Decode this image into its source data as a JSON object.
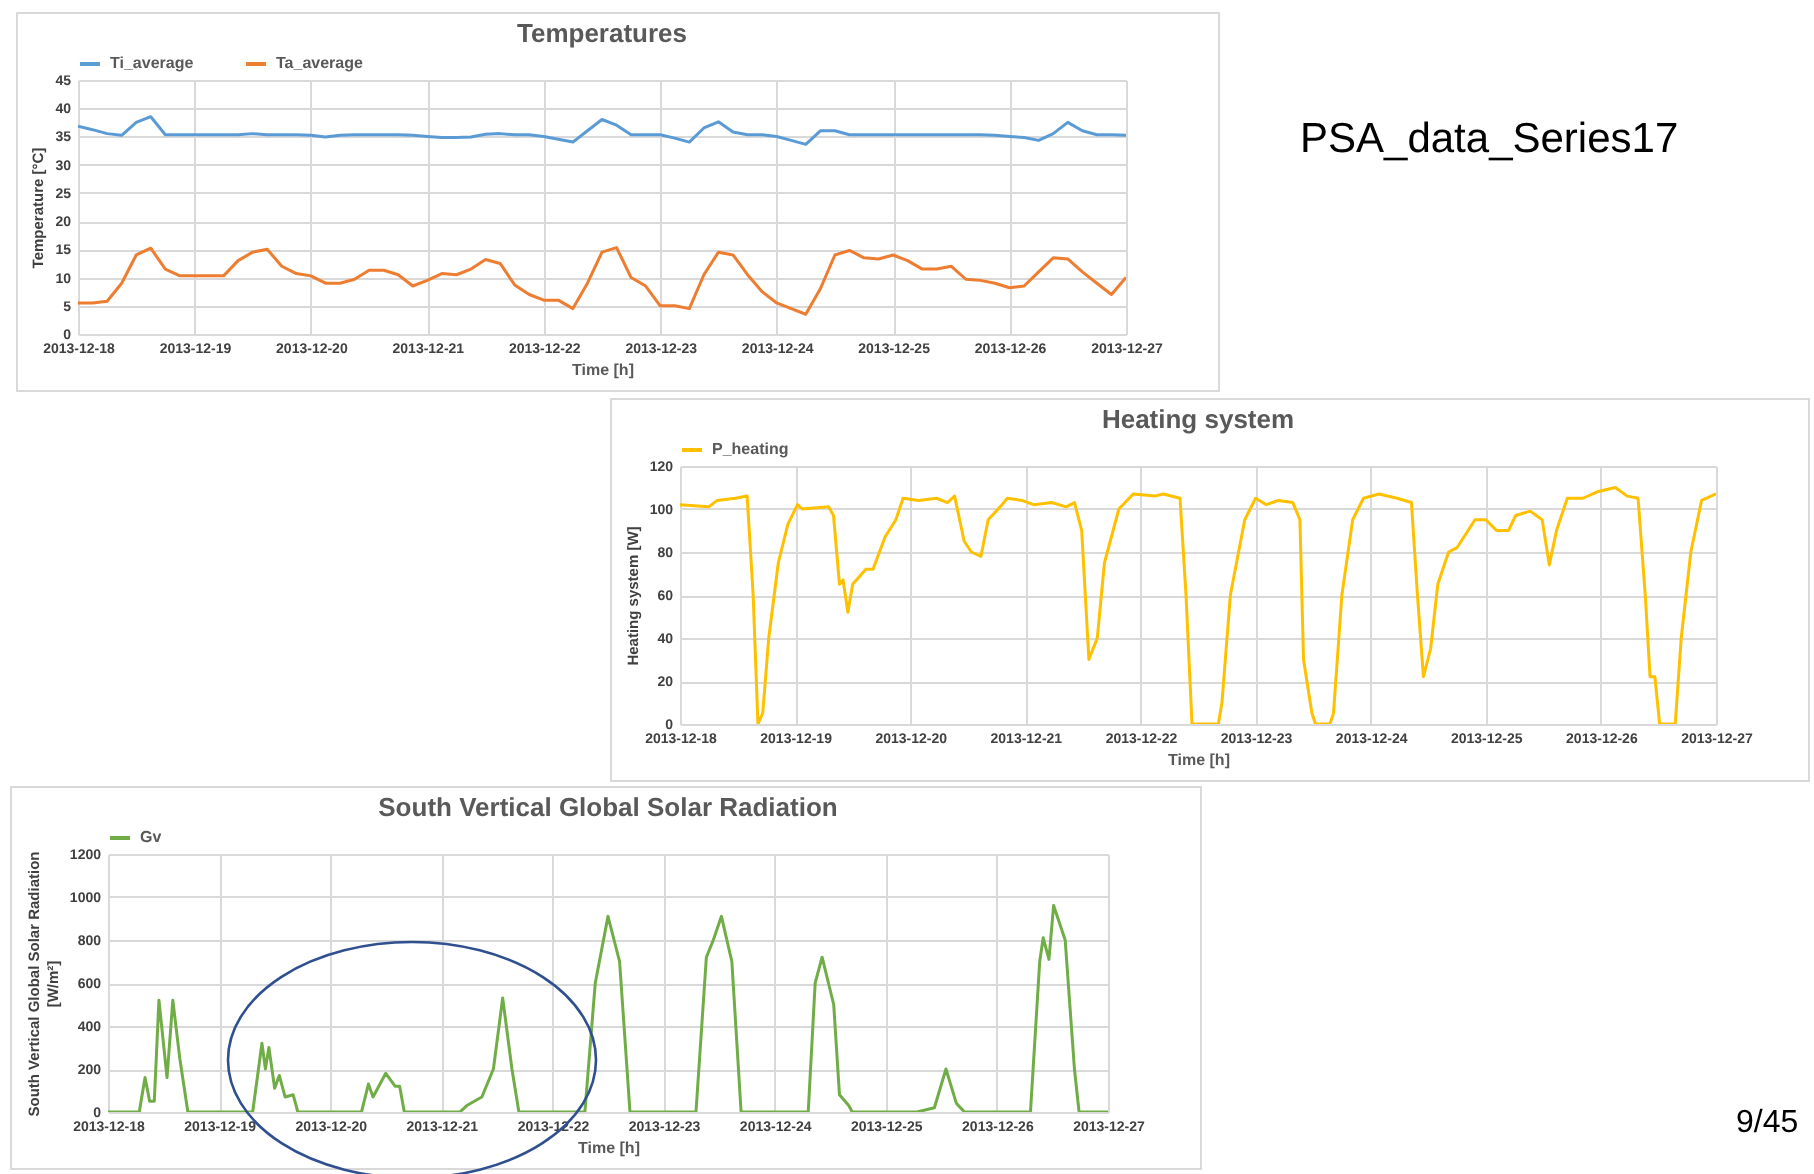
{
  "chart_data": [
    {
      "type": "line",
      "title": "Temperatures",
      "xlabel": "Time [h]",
      "ylabel": "Temperature [°C]",
      "legend": "top",
      "grid": true,
      "annotations": [
        "PSA_data_Series17"
      ],
      "xlim": [
        "2013-12-18",
        "2013-12-27"
      ],
      "xticks": [
        "2013-12-18",
        "2013-12-19",
        "2013-12-20",
        "2013-12-21",
        "2013-12-22",
        "2013-12-23",
        "2013-12-24",
        "2013-12-25",
        "2013-12-26",
        "2013-12-27"
      ],
      "ylim": [
        0,
        45
      ],
      "yticks": [
        0,
        5,
        10,
        15,
        20,
        25,
        30,
        35,
        40,
        45
      ],
      "x": [
        "2013-12-18T00:00",
        "2013-12-18T03:00",
        "2013-12-18T06:00",
        "2013-12-18T09:00",
        "2013-12-18T12:00",
        "2013-12-18T15:00",
        "2013-12-18T18:00",
        "2013-12-18T21:00",
        "2013-12-19T00:00",
        "2013-12-19T03:00",
        "2013-12-19T06:00",
        "2013-12-19T09:00",
        "2013-12-19T12:00",
        "2013-12-19T15:00",
        "2013-12-19T18:00",
        "2013-12-19T21:00",
        "2013-12-20T00:00",
        "2013-12-20T03:00",
        "2013-12-20T06:00",
        "2013-12-20T09:00",
        "2013-12-20T12:00",
        "2013-12-20T15:00",
        "2013-12-20T18:00",
        "2013-12-20T21:00",
        "2013-12-21T00:00",
        "2013-12-21T03:00",
        "2013-12-21T06:00",
        "2013-12-21T09:00",
        "2013-12-21T12:00",
        "2013-12-21T15:00",
        "2013-12-21T18:00",
        "2013-12-21T21:00",
        "2013-12-22T00:00",
        "2013-12-22T03:00",
        "2013-12-22T06:00",
        "2013-12-22T09:00",
        "2013-12-22T12:00",
        "2013-12-22T15:00",
        "2013-12-22T18:00",
        "2013-12-22T21:00",
        "2013-12-23T00:00",
        "2013-12-23T03:00",
        "2013-12-23T06:00",
        "2013-12-23T09:00",
        "2013-12-23T12:00",
        "2013-12-23T15:00",
        "2013-12-23T18:00",
        "2013-12-23T21:00",
        "2013-12-24T00:00",
        "2013-12-24T03:00",
        "2013-12-24T06:00",
        "2013-12-24T09:00",
        "2013-12-24T12:00",
        "2013-12-24T15:00",
        "2013-12-24T18:00",
        "2013-12-24T21:00",
        "2013-12-25T00:00",
        "2013-12-25T03:00",
        "2013-12-25T06:00",
        "2013-12-25T09:00",
        "2013-12-25T12:00",
        "2013-12-25T15:00",
        "2013-12-25T18:00",
        "2013-12-25T21:00",
        "2013-12-26T00:00",
        "2013-12-26T03:00",
        "2013-12-26T06:00",
        "2013-12-26T09:00",
        "2013-12-26T12:00",
        "2013-12-26T15:00",
        "2013-12-26T18:00",
        "2013-12-26T21:00",
        "2013-12-27T00:00"
      ],
      "series": [
        {
          "name": "Ti_average",
          "color": "#5b9bd5",
          "values": [
            36.8,
            36.2,
            35.5,
            35.2,
            37.5,
            38.5,
            35.3,
            35.3,
            35.3,
            35.3,
            35.3,
            35.3,
            35.5,
            35.3,
            35.3,
            35.3,
            35.2,
            34.9,
            35.2,
            35.3,
            35.3,
            35.3,
            35.3,
            35.2,
            35.0,
            34.8,
            34.8,
            34.9,
            35.4,
            35.5,
            35.3,
            35.3,
            35.0,
            34.5,
            34.0,
            36,
            38,
            37,
            35.3,
            35.3,
            35.3,
            34.7,
            34.0,
            36.5,
            37.6,
            35.8,
            35.3,
            35.3,
            35.0,
            34.3,
            33.6,
            36,
            36,
            35.3,
            35.3,
            35.3,
            35.3,
            35.3,
            35.3,
            35.3,
            35.3,
            35.3,
            35.3,
            35.2,
            35.0,
            34.8,
            34.3,
            35.5,
            37.5,
            36,
            35.3,
            35.3,
            35.2
          ]
        },
        {
          "name": "Ta_average",
          "color": "#ed7d31",
          "values": [
            5.5,
            5.5,
            5.8,
            9,
            14,
            15.2,
            11.5,
            10.3,
            10.3,
            10.3,
            10.3,
            13,
            14.5,
            15,
            12,
            10.7,
            10.3,
            9,
            9,
            9.7,
            11.3,
            11.3,
            10.5,
            8.5,
            9.5,
            10.7,
            10.5,
            11.5,
            13.2,
            12.5,
            8.7,
            7,
            6,
            6,
            4.5,
            9,
            14.5,
            15.3,
            10,
            8.5,
            5,
            5,
            4.5,
            10.5,
            14.5,
            14,
            10.5,
            7.5,
            5.5,
            4.5,
            3.5,
            8,
            14,
            14.8,
            13.5,
            13.3,
            14,
            13,
            11.5,
            11.5,
            12,
            9.7,
            9.5,
            9,
            8.2,
            8.5,
            11,
            13.5,
            13.3,
            11,
            9,
            7,
            10
          ]
        }
      ]
    },
    {
      "type": "line",
      "title": "Heating system",
      "xlabel": "Time [h]",
      "ylabel": "Heating system [W]",
      "legend": "top",
      "grid": true,
      "xlim": [
        "2013-12-18",
        "2013-12-27"
      ],
      "xticks": [
        "2013-12-18",
        "2013-12-19",
        "2013-12-20",
        "2013-12-21",
        "2013-12-22",
        "2013-12-23",
        "2013-12-24",
        "2013-12-25",
        "2013-12-26",
        "2013-12-27"
      ],
      "ylim": [
        0,
        120
      ],
      "yticks": [
        0,
        20,
        40,
        60,
        80,
        100,
        120
      ],
      "series": [
        {
          "name": "P_heating",
          "color": "#ffc000",
          "x": [
            "2013-12-18T00:00",
            "2013-12-18T06:00",
            "2013-12-18T07:45",
            "2013-12-18T11:30",
            "2013-12-18T14:00",
            "2013-12-18T15:15",
            "2013-12-18T16:15",
            "2013-12-18T17:15",
            "2013-12-18T18:30",
            "2013-12-18T20:30",
            "2013-12-18T22:30",
            "2013-12-19T00:30",
            "2013-12-19T01:30",
            "2013-12-19T07:00",
            "2013-12-19T08:00",
            "2013-12-19T09:15",
            "2013-12-19T10:00",
            "2013-12-19T11:00",
            "2013-12-19T12:00",
            "2013-12-19T14:45",
            "2013-12-19T16:15",
            "2013-12-19T18:45",
            "2013-12-19T21:00",
            "2013-12-19T22:30",
            "2013-12-20T01:45",
            "2013-12-20T05:30",
            "2013-12-20T07:45",
            "2013-12-20T09:15",
            "2013-12-20T11:15",
            "2013-12-20T12:45",
            "2013-12-20T14:45",
            "2013-12-20T16:15",
            "2013-12-20T18:45",
            "2013-12-20T20:15",
            "2013-12-20T23:15",
            "2013-12-21T01:45",
            "2013-12-21T05:30",
            "2013-12-21T08:30",
            "2013-12-21T10:15",
            "2013-12-21T11:45",
            "2013-12-21T13:15",
            "2013-12-21T15:00",
            "2013-12-21T16:30",
            "2013-12-21T19:30",
            "2013-12-21T22:30",
            "2013-12-22T03:00",
            "2013-12-22T04:45",
            "2013-12-22T08:15",
            "2013-12-22T09:30",
            "2013-12-22T10:45",
            "2013-12-22T16:15",
            "2013-12-22T17:00",
            "2013-12-22T18:45",
            "2013-12-22T21:45",
            "2013-12-23T00:00",
            "2013-12-23T02:15",
            "2013-12-23T04:45",
            "2013-12-23T07:45",
            "2013-12-23T09:15",
            "2013-12-23T10:00",
            "2013-12-23T11:45",
            "2013-12-23T12:30",
            "2013-12-23T15:30",
            "2013-12-23T16:15",
            "2013-12-23T18:00",
            "2013-12-23T20:15",
            "2013-12-23T22:30",
            "2013-12-24T01:45",
            "2013-12-24T05:30",
            "2013-12-24T08:30",
            "2013-12-24T09:45",
            "2013-12-24T11:00",
            "2013-12-24T12:30",
            "2013-12-24T14:00",
            "2013-12-24T16:15",
            "2013-12-24T18:00",
            "2013-12-24T21:45",
            "2013-12-25T00:00",
            "2013-12-25T02:15",
            "2013-12-25T04:45",
            "2013-12-25T06:15",
            "2013-12-25T09:15",
            "2013-12-25T11:45",
            "2013-12-25T13:15",
            "2013-12-25T14:45",
            "2013-12-25T17:00",
            "2013-12-25T20:15",
            "2013-12-25T23:15",
            "2013-12-26T03:00",
            "2013-12-26T05:30",
            "2013-12-26T07:45",
            "2013-12-26T09:15",
            "2013-12-26T10:15",
            "2013-12-26T11:15",
            "2013-12-26T12:15",
            "2013-12-26T15:30",
            "2013-12-26T16:45",
            "2013-12-26T18:45",
            "2013-12-26T21:00",
            "2013-12-27T00:00"
          ],
          "values": [
            102,
            101,
            104,
            105,
            106,
            60,
            0,
            5,
            40,
            75,
            93,
            102,
            100,
            101,
            97,
            65,
            67,
            52,
            65,
            72,
            72,
            87,
            95,
            105,
            104,
            105,
            103,
            106,
            85,
            80,
            78,
            95,
            101,
            105,
            104,
            102,
            103,
            101,
            103,
            90,
            30,
            40,
            75,
            100,
            107,
            106,
            107,
            105,
            60,
            0,
            0,
            10,
            60,
            95,
            105,
            102,
            104,
            103,
            95,
            30,
            5,
            0,
            0,
            5,
            60,
            95,
            105,
            107,
            105,
            103,
            60,
            22,
            35,
            65,
            80,
            82,
            95,
            95,
            90,
            90,
            97,
            99,
            95,
            74,
            90,
            105,
            105,
            108,
            110,
            106,
            105,
            60,
            22,
            22,
            0,
            0,
            40,
            80,
            104,
            107
          ]
        }
      ]
    },
    {
      "type": "line",
      "title": "South Vertical Global Solar Radiation",
      "xlabel": "Time [h]",
      "ylabel": "South Vertical Global Solar Radiation\n[W/m²]",
      "legend": "top",
      "grid": true,
      "annotations": [
        "9/45"
      ],
      "xlim": [
        "2013-12-18",
        "2013-12-27"
      ],
      "xticks": [
        "2013-12-18",
        "2013-12-19",
        "2013-12-20",
        "2013-12-21",
        "2013-12-22",
        "2013-12-23",
        "2013-12-24",
        "2013-12-25",
        "2013-12-26",
        "2013-12-27"
      ],
      "ylim": [
        0,
        1200
      ],
      "yticks": [
        0,
        200,
        400,
        600,
        800,
        1000,
        1200
      ],
      "series": [
        {
          "name": "Gv",
          "color": "#70ad47",
          "x": [
            "2013-12-18T00:00",
            "2013-12-18T06:45",
            "2013-12-18T08:00",
            "2013-12-18T09:00",
            "2013-12-18T10:00",
            "2013-12-18T11:00",
            "2013-12-18T12:45",
            "2013-12-18T14:00",
            "2013-12-18T15:30",
            "2013-12-18T17:15",
            "2013-12-19T07:15",
            "2013-12-19T09:15",
            "2013-12-19T10:00",
            "2013-12-19T10:45",
            "2013-12-19T12:00",
            "2013-12-19T13:00",
            "2013-12-19T14:15",
            "2013-12-19T16:00",
            "2013-12-19T17:00",
            "2013-12-20T06:45",
            "2013-12-20T08:15",
            "2013-12-20T09:15",
            "2013-12-20T12:00",
            "2013-12-20T14:00",
            "2013-12-20T15:00",
            "2013-12-20T16:00",
            "2013-12-21T04:00",
            "2013-12-21T05:30",
            "2013-12-21T08:45",
            "2013-12-21T11:15",
            "2013-12-21T13:15",
            "2013-12-21T15:15",
            "2013-12-21T16:45",
            "2013-12-22T07:00",
            "2013-12-22T09:15",
            "2013-12-22T12:00",
            "2013-12-22T14:30",
            "2013-12-22T16:45",
            "2013-12-23T07:00",
            "2013-12-23T09:15",
            "2013-12-23T10:45",
            "2013-12-23T12:30",
            "2013-12-23T14:45",
            "2013-12-23T16:45",
            "2013-12-24T07:15",
            "2013-12-24T08:45",
            "2013-12-24T10:15",
            "2013-12-24T12:45",
            "2013-12-24T14:00",
            "2013-12-24T16:00",
            "2013-12-24T16:45",
            "2013-12-25T06:45",
            "2013-12-25T10:30",
            "2013-12-25T13:00",
            "2013-12-25T15:15",
            "2013-12-25T17:00",
            "2013-12-26T07:15",
            "2013-12-26T09:15",
            "2013-12-26T10:00",
            "2013-12-26T11:15",
            "2013-12-26T12:15",
            "2013-12-26T14:45",
            "2013-12-26T16:45",
            "2013-12-26T17:45",
            "2013-12-27T00:00"
          ],
          "values": [
            0,
            0,
            160,
            50,
            50,
            520,
            160,
            520,
            250,
            0,
            0,
            320,
            200,
            300,
            110,
            170,
            70,
            80,
            0,
            0,
            130,
            70,
            180,
            120,
            120,
            0,
            0,
            30,
            70,
            200,
            530,
            200,
            0,
            0,
            600,
            910,
            700,
            0,
            0,
            720,
            800,
            910,
            700,
            0,
            0,
            600,
            720,
            500,
            80,
            30,
            0,
            0,
            20,
            200,
            40,
            0,
            0,
            700,
            810,
            710,
            960,
            800,
            200,
            0,
            0
          ]
        }
      ]
    }
  ]
}
